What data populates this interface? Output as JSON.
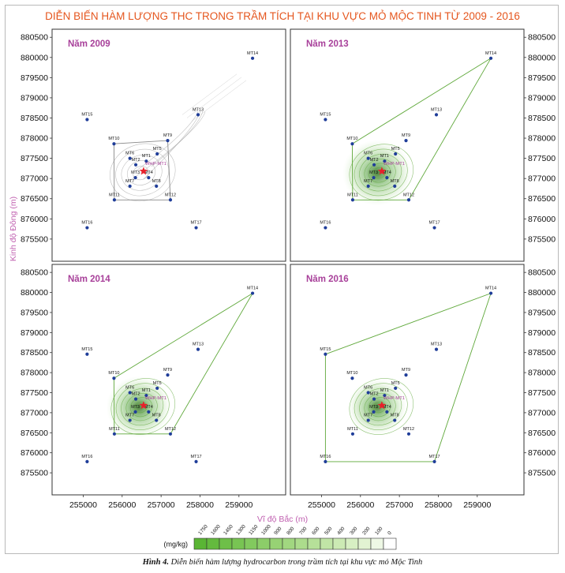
{
  "figure": {
    "title": "DIỄN BIẾN HÀM LƯỢNG THC TRONG TRẦM TÍCH TẠI KHU VỰC MỎ MỘC TINH TỪ 2009 - 2016",
    "caption_bold": "Hình 4.",
    "caption_text": " Diễn biến hàm lượng hydrocarbon trong trầm tích tại khu vực mỏ Mộc Tinh"
  },
  "colors": {
    "title": "#e5561e",
    "panel_label": "#a8409a",
    "axis_label": "#c060b0",
    "station": "#1f3d99",
    "platform": "#e8202a",
    "contour_2009": "#8a8a8a",
    "contour_green": "#5fa83a"
  },
  "chart_data": {
    "type": "scatter",
    "xlabel": "Vĩ độ Bắc (m)",
    "ylabel": "Kinh độ Đông (m)",
    "xlim": [
      254200,
      260200
    ],
    "ylim": [
      874950,
      880700
    ],
    "x_ticks": [
      255000,
      256000,
      257000,
      258000,
      259000
    ],
    "y_ticks": [
      875500,
      876000,
      876500,
      877000,
      877500,
      878000,
      878500,
      879000,
      879500,
      880000,
      880500
    ],
    "grid": false,
    "layout": "2x2",
    "platform": {
      "label": "WHP-MT1",
      "x": 256550,
      "y": 877180
    },
    "stations": [
      {
        "label": "MT1",
        "x": 256620,
        "y": 877430
      },
      {
        "label": "MT2",
        "x": 256350,
        "y": 877340
      },
      {
        "label": "MT3",
        "x": 256340,
        "y": 877020
      },
      {
        "label": "MT4",
        "x": 256680,
        "y": 877020
      },
      {
        "label": "MT5",
        "x": 256900,
        "y": 877610
      },
      {
        "label": "MT6",
        "x": 256200,
        "y": 877500
      },
      {
        "label": "MT7",
        "x": 256200,
        "y": 876810
      },
      {
        "label": "MT8",
        "x": 256880,
        "y": 876810
      },
      {
        "label": "MT9",
        "x": 257170,
        "y": 877940
      },
      {
        "label": "MT10",
        "x": 255790,
        "y": 877860
      },
      {
        "label": "MT11",
        "x": 255800,
        "y": 876470
      },
      {
        "label": "MT12",
        "x": 257240,
        "y": 876470
      },
      {
        "label": "MT13",
        "x": 257950,
        "y": 878580
      },
      {
        "label": "MT14",
        "x": 259350,
        "y": 879980
      },
      {
        "label": "MT15",
        "x": 255100,
        "y": 878460
      },
      {
        "label": "MT16",
        "x": 255100,
        "y": 875780
      },
      {
        "label": "MT17",
        "x": 257900,
        "y": 875780
      }
    ],
    "panels": [
      {
        "label": "Năm 2009",
        "style": "gray",
        "polygon": [
          "MT10",
          "MT11",
          "MT12",
          "MT9"
        ],
        "extends_to": "MT13",
        "intensity": 0.15
      },
      {
        "label": "Năm 2013",
        "style": "green",
        "polygon": [
          "MT10",
          "MT11",
          "MT12",
          "MT14"
        ],
        "intensity": 1.0
      },
      {
        "label": "Năm 2014",
        "style": "green",
        "polygon": [
          "MT10",
          "MT11",
          "MT12",
          "MT14"
        ],
        "intensity": 0.9
      },
      {
        "label": "Năm 2016",
        "style": "green",
        "polygon": [
          "MT15",
          "MT16",
          "MT17",
          "MT14"
        ],
        "intensity": 0.75
      }
    ],
    "legend": {
      "unit": "(mg/kg)",
      "levels": [
        "1750",
        "1600",
        "1450",
        "1300",
        "1150",
        "1000",
        "900",
        "800",
        "700",
        "600",
        "500",
        "400",
        "300",
        "200",
        "100",
        "0"
      ],
      "colors": [
        "#5ab534",
        "#64ba3e",
        "#6ebf48",
        "#78c453",
        "#82c95e",
        "#8ccd69",
        "#97d274",
        "#a1d780",
        "#acdc8c",
        "#b6e099",
        "#c1e5a6",
        "#cceab4",
        "#d7efc3",
        "#e2f3d2",
        "#eef8e5",
        "#ffffff"
      ]
    }
  }
}
